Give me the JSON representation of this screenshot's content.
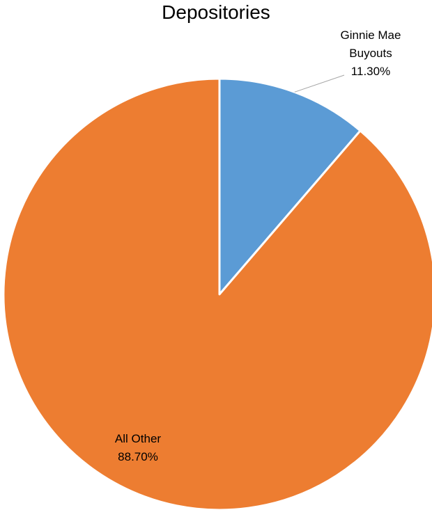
{
  "chart_data": {
    "type": "pie",
    "title": "Depositories",
    "slices": [
      {
        "label_lines": [
          "Ginnie Mae",
          "Buyouts"
        ],
        "value": 11.3,
        "value_label": "11.30%",
        "color": "#5B9BD5"
      },
      {
        "label_lines": [
          "All Other"
        ],
        "value": 88.7,
        "value_label": "88.70%",
        "color": "#ED7D31"
      }
    ],
    "start_angle_deg": 0,
    "direction": "clockwise"
  }
}
